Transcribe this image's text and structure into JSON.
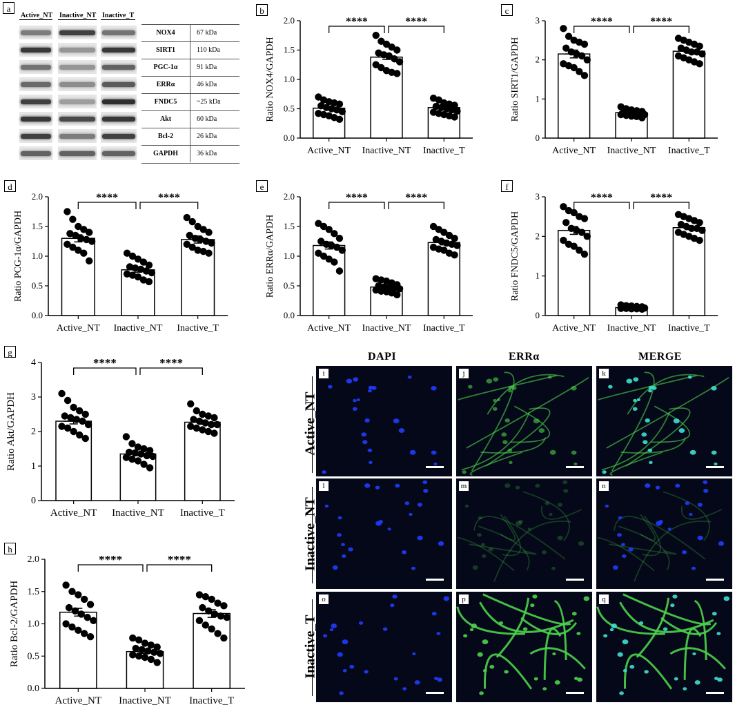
{
  "panel_letters": {
    "a": "a",
    "b": "b",
    "c": "c",
    "d": "d",
    "e": "e",
    "f": "f",
    "g": "g",
    "h": "h"
  },
  "western_blot": {
    "lanes": [
      "Active_NT",
      "Inactive_NT",
      "Inactive_T"
    ],
    "rows": [
      {
        "protein": "NOX4",
        "kda": "67 kDa",
        "intensity": [
          0.45,
          0.8,
          0.5
        ]
      },
      {
        "protein": "SIRT1",
        "kda": "110 kDa",
        "intensity": [
          0.85,
          0.3,
          0.85
        ]
      },
      {
        "protein": "PGC-1α",
        "kda": "91 kDa",
        "intensity": [
          0.5,
          0.3,
          0.6
        ]
      },
      {
        "protein": "ERRα",
        "kda": "46 kDa",
        "intensity": [
          0.55,
          0.35,
          0.65
        ]
      },
      {
        "protein": "FNDC5",
        "kda": "~25 kDa",
        "intensity": [
          0.8,
          0.25,
          0.9
        ]
      },
      {
        "protein": "Akt",
        "kda": "60 kDa",
        "intensity": [
          0.85,
          0.75,
          0.85
        ]
      },
      {
        "protein": "Bcl-2",
        "kda": "26 kDa",
        "intensity": [
          0.8,
          0.45,
          0.8
        ]
      },
      {
        "protein": "GAPDH",
        "kda": "36 kDa",
        "intensity": [
          0.6,
          0.6,
          0.6
        ]
      }
    ]
  },
  "chart_data": [
    {
      "id": "b",
      "type": "bar",
      "categories": [
        "Active_NT",
        "Inactive_NT",
        "Inactive_T"
      ],
      "values": [
        0.51,
        1.38,
        0.52
      ],
      "sem": [
        0.03,
        0.04,
        0.03
      ],
      "ylabel": "Ratio NOX4/GAPDH",
      "ylim": [
        0,
        2.0
      ],
      "yticks": [
        0,
        0.5,
        1.0,
        1.5,
        2.0
      ],
      "ytick_labels": [
        "0.0",
        "0.5",
        "1.0",
        "1.5",
        "2.0"
      ],
      "significance": [
        "****",
        "****"
      ],
      "points": [
        [
          0.7,
          0.65,
          0.62,
          0.6,
          0.58,
          0.55,
          0.52,
          0.5,
          0.48,
          0.45,
          0.42,
          0.4,
          0.38,
          0.35,
          0.32
        ],
        [
          1.75,
          1.65,
          1.6,
          1.55,
          1.5,
          1.45,
          1.42,
          1.4,
          1.35,
          1.3,
          1.25,
          1.2,
          1.15,
          1.12,
          1.1
        ],
        [
          0.68,
          0.65,
          0.6,
          0.58,
          0.56,
          0.54,
          0.52,
          0.5,
          0.48,
          0.46,
          0.44,
          0.42,
          0.4,
          0.38,
          0.36
        ]
      ]
    },
    {
      "id": "c",
      "type": "bar",
      "categories": [
        "Active_NT",
        "Inactive_NT",
        "Inactive_T"
      ],
      "values": [
        2.15,
        0.65,
        2.22
      ],
      "sem": [
        0.1,
        0.03,
        0.05
      ],
      "ylabel": "Ratio SIRT1/GAPDH",
      "ylim": [
        0,
        3
      ],
      "yticks": [
        0,
        1,
        2,
        3
      ],
      "ytick_labels": [
        "0",
        "1",
        "2",
        "3"
      ],
      "significance": [
        "****",
        "****"
      ],
      "points": [
        [
          2.8,
          2.6,
          2.5,
          2.45,
          2.4,
          2.3,
          2.2,
          2.15,
          2.1,
          2.0,
          1.9,
          1.85,
          1.8,
          1.7,
          1.6
        ],
        [
          0.8,
          0.75,
          0.72,
          0.7,
          0.68,
          0.66,
          0.65,
          0.64,
          0.62,
          0.6,
          0.6,
          0.58,
          0.56,
          0.55,
          0.52
        ],
        [
          2.55,
          2.5,
          2.45,
          2.4,
          2.35,
          2.3,
          2.25,
          2.2,
          2.2,
          2.15,
          2.1,
          2.05,
          2.0,
          1.95,
          1.9
        ]
      ]
    },
    {
      "id": "d",
      "type": "bar",
      "categories": [
        "Active_NT",
        "Inactive_NT",
        "Inactive_T"
      ],
      "values": [
        1.3,
        0.77,
        1.28
      ],
      "sem": [
        0.06,
        0.04,
        0.06
      ],
      "ylabel": "Ratio PCG-1α/GAPDH",
      "ylim": [
        0,
        2.0
      ],
      "yticks": [
        0,
        0.5,
        1.0,
        1.5,
        2.0
      ],
      "ytick_labels": [
        "0.0",
        "0.5",
        "1.0",
        "1.5",
        "2.0"
      ],
      "significance": [
        "****",
        "****"
      ],
      "points": [
        [
          1.75,
          1.62,
          1.5,
          1.45,
          1.4,
          1.38,
          1.35,
          1.3,
          1.28,
          1.25,
          1.2,
          1.15,
          1.1,
          1.05,
          0.92
        ],
        [
          1.05,
          1.0,
          0.95,
          0.9,
          0.85,
          0.82,
          0.8,
          0.78,
          0.75,
          0.72,
          0.7,
          0.68,
          0.65,
          0.6,
          0.57
        ],
        [
          1.65,
          1.58,
          1.5,
          1.45,
          1.4,
          1.35,
          1.3,
          1.28,
          1.25,
          1.22,
          1.2,
          1.15,
          1.1,
          1.08,
          1.05
        ]
      ]
    },
    {
      "id": "e",
      "type": "bar",
      "categories": [
        "Active_NT",
        "Inactive_NT",
        "Inactive_T"
      ],
      "values": [
        1.18,
        0.48,
        1.23
      ],
      "sem": [
        0.06,
        0.02,
        0.04
      ],
      "ylabel": "Ratio ERRα/GAPDH",
      "ylim": [
        0,
        2.0
      ],
      "yticks": [
        0,
        0.5,
        1.0,
        1.5,
        2.0
      ],
      "ytick_labels": [
        "0.0",
        "0.5",
        "1.0",
        "1.5",
        "2.0"
      ],
      "significance": [
        "****",
        "****"
      ],
      "points": [
        [
          1.55,
          1.5,
          1.45,
          1.38,
          1.3,
          1.25,
          1.2,
          1.18,
          1.15,
          1.1,
          1.05,
          1.0,
          0.95,
          0.9,
          0.75
        ],
        [
          0.62,
          0.6,
          0.58,
          0.55,
          0.52,
          0.5,
          0.48,
          0.47,
          0.46,
          0.45,
          0.43,
          0.41,
          0.4,
          0.38,
          0.35
        ],
        [
          1.5,
          1.45,
          1.4,
          1.35,
          1.3,
          1.28,
          1.25,
          1.22,
          1.2,
          1.18,
          1.15,
          1.12,
          1.1,
          1.05,
          1.02
        ]
      ]
    },
    {
      "id": "f",
      "type": "bar",
      "categories": [
        "Active_NT",
        "Inactive_NT",
        "Inactive_T"
      ],
      "values": [
        2.15,
        0.2,
        2.22
      ],
      "sem": [
        0.1,
        0.01,
        0.05
      ],
      "ylabel": "Ratio FNDC5/GAPDH",
      "ylim": [
        0,
        3
      ],
      "yticks": [
        0,
        1,
        2,
        3
      ],
      "ytick_labels": [
        "0",
        "1",
        "2",
        "3"
      ],
      "significance": [
        "****",
        "****"
      ],
      "points": [
        [
          2.75,
          2.65,
          2.6,
          2.5,
          2.45,
          2.35,
          2.2,
          2.15,
          2.1,
          2.0,
          1.9,
          1.8,
          1.75,
          1.65,
          1.55
        ],
        [
          0.27,
          0.25,
          0.24,
          0.23,
          0.22,
          0.21,
          0.2,
          0.2,
          0.19,
          0.19,
          0.18,
          0.18,
          0.17,
          0.17,
          0.16
        ],
        [
          2.55,
          2.5,
          2.45,
          2.4,
          2.35,
          2.3,
          2.25,
          2.2,
          2.2,
          2.15,
          2.1,
          2.05,
          2.0,
          1.95,
          1.9
        ]
      ]
    },
    {
      "id": "g",
      "type": "bar",
      "categories": [
        "Active_NT",
        "Inactive_NT",
        "Inactive_T"
      ],
      "values": [
        2.3,
        1.35,
        2.27
      ],
      "sem": [
        0.08,
        0.05,
        0.06
      ],
      "ylabel": "Ratio Akt/GAPDH",
      "ylim": [
        0,
        4
      ],
      "yticks": [
        0,
        1,
        2,
        3,
        4
      ],
      "ytick_labels": [
        "0",
        "1",
        "2",
        "3",
        "4"
      ],
      "significance": [
        "****",
        "****"
      ],
      "points": [
        [
          3.1,
          2.9,
          2.7,
          2.6,
          2.5,
          2.45,
          2.4,
          2.35,
          2.3,
          2.2,
          2.15,
          2.1,
          2.0,
          1.9,
          1.8
        ],
        [
          1.85,
          1.65,
          1.55,
          1.5,
          1.45,
          1.4,
          1.38,
          1.35,
          1.3,
          1.28,
          1.25,
          1.2,
          1.15,
          1.05,
          0.95
        ],
        [
          2.8,
          2.6,
          2.5,
          2.45,
          2.4,
          2.35,
          2.3,
          2.25,
          2.2,
          2.2,
          2.15,
          2.1,
          2.05,
          2.0,
          1.95
        ]
      ]
    },
    {
      "id": "h",
      "type": "bar",
      "categories": [
        "Active_NT",
        "Inactive_NT",
        "Inactive_T"
      ],
      "values": [
        1.18,
        0.57,
        1.16
      ],
      "sem": [
        0.06,
        0.03,
        0.06
      ],
      "ylabel": "Ratio Bcl-2/GAPDH",
      "ylim": [
        0,
        2.0
      ],
      "yticks": [
        0,
        0.5,
        1.0,
        1.5,
        2.0
      ],
      "ytick_labels": [
        "0.0",
        "0.5",
        "1.0",
        "1.5",
        "2.0"
      ],
      "significance": [
        "****",
        "****"
      ],
      "points": [
        [
          1.6,
          1.5,
          1.45,
          1.38,
          1.3,
          1.25,
          1.2,
          1.15,
          1.1,
          1.05,
          1.0,
          0.95,
          0.9,
          0.85,
          0.8
        ],
        [
          0.78,
          0.75,
          0.7,
          0.67,
          0.64,
          0.62,
          0.6,
          0.58,
          0.56,
          0.54,
          0.52,
          0.5,
          0.48,
          0.45,
          0.4
        ],
        [
          1.45,
          1.42,
          1.38,
          1.32,
          1.28,
          1.25,
          1.2,
          1.15,
          1.12,
          1.1,
          1.05,
          0.98,
          0.92,
          0.85,
          0.78
        ]
      ]
    }
  ],
  "microscopy": {
    "columns": [
      "DAPI",
      "ERRα",
      "MERGE"
    ],
    "rows": [
      "Active_NT",
      "Inactive_NT",
      "Inactive_T"
    ],
    "tile_labels": [
      [
        "i",
        "j",
        "k"
      ],
      [
        "l",
        "m",
        "n"
      ],
      [
        "o",
        "p",
        "q"
      ]
    ]
  },
  "colors": {
    "dapi": "#1f3cff",
    "errA": "#4cd24c",
    "merge_nucleus": "#3fe0d0",
    "background": "#050818",
    "bar_fill": "#ffffff",
    "point": "#000000"
  }
}
